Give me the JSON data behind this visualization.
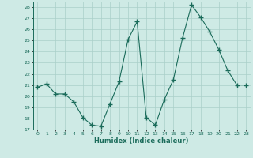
{
  "x": [
    0,
    1,
    2,
    3,
    4,
    5,
    6,
    7,
    8,
    9,
    10,
    11,
    12,
    13,
    14,
    15,
    16,
    17,
    18,
    19,
    20,
    21,
    22,
    23
  ],
  "y": [
    20.8,
    21.1,
    20.2,
    20.2,
    19.5,
    18.1,
    17.4,
    17.3,
    19.3,
    21.3,
    25.1,
    26.7,
    18.1,
    17.4,
    19.7,
    21.5,
    25.2,
    28.2,
    27.1,
    25.8,
    24.2,
    22.3,
    21.0,
    21.0
  ],
  "xlim": [
    -0.5,
    23.5
  ],
  "ylim": [
    17,
    28.5
  ],
  "yticks": [
    17,
    18,
    19,
    20,
    21,
    22,
    23,
    24,
    25,
    26,
    27,
    28
  ],
  "xticks": [
    0,
    1,
    2,
    3,
    4,
    5,
    6,
    7,
    8,
    9,
    10,
    11,
    12,
    13,
    14,
    15,
    16,
    17,
    18,
    19,
    20,
    21,
    22,
    23
  ],
  "xlabel": "Humidex (Indice chaleur)",
  "line_color": "#1a6b5a",
  "marker": "+",
  "marker_size": 4,
  "bg_color": "#ceeae5",
  "grid_color": "#aacfc9"
}
